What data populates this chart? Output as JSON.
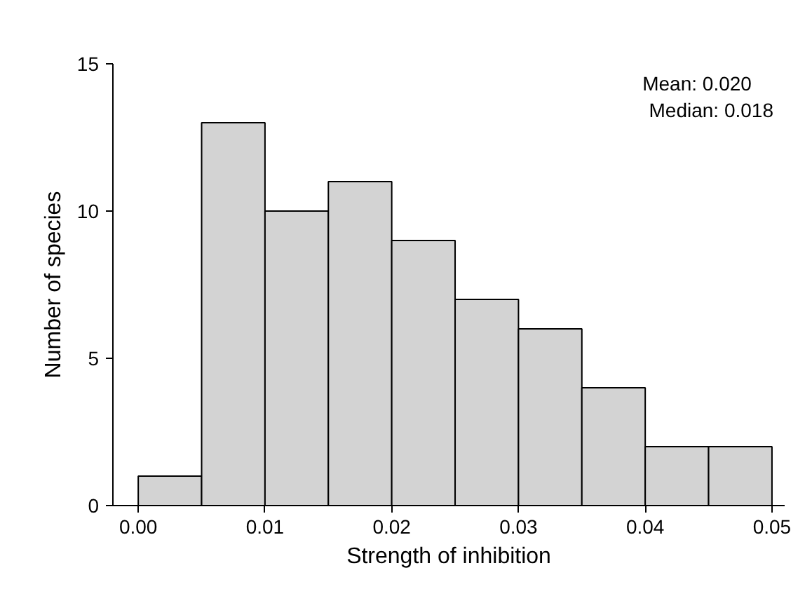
{
  "chart_data": {
    "type": "histogram",
    "xlabel": "Strength of inhibition",
    "ylabel": "Number of species",
    "bins": [
      0,
      0.005,
      0.01,
      0.015,
      0.02,
      0.025,
      0.03,
      0.035,
      0.04,
      0.045,
      0.05
    ],
    "values": [
      1,
      13,
      10,
      11,
      9,
      7,
      6,
      4,
      2,
      2
    ],
    "color": "#d3d3d3",
    "xlim": [
      -0.002,
      0.051
    ],
    "ylim": [
      0,
      15
    ],
    "xticks": [
      {
        "value": 0,
        "label": "0.00"
      },
      0.01,
      0.02,
      0.03,
      0.04,
      0.05
    ],
    "yticks": [
      0,
      5,
      10,
      15
    ],
    "grid": false,
    "annotations": [
      "Mean:     0.020",
      "Median: 0.018"
    ]
  }
}
